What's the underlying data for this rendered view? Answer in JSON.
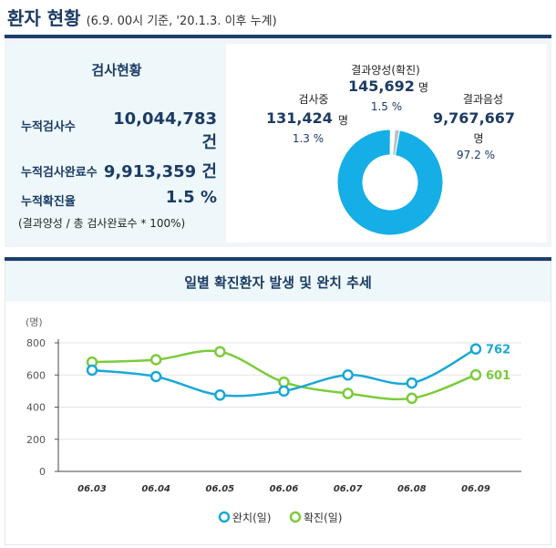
{
  "header": {
    "title": "환자 현황",
    "subtitle": "(6.9. 00시 기준, '20.1.3. 이후 누계)"
  },
  "stats": {
    "title": "검사현황",
    "rows": [
      {
        "label": "누적검사수",
        "value": "10,044,783",
        "unit": "건"
      },
      {
        "label": "누적검사완료수",
        "value": "9,913,359 건"
      },
      {
        "label": "누적확진율",
        "value": "1.5 %"
      }
    ],
    "note": "(결과양성 / 총 검사완료수 * 100%)"
  },
  "pie": {
    "testing": {
      "label": "검사중",
      "value": "131,424",
      "unit": "명",
      "pct": "1.3 %"
    },
    "positive": {
      "label": "결과양성(확진)",
      "value": "145,692",
      "unit": "명",
      "pct": "1.5 %"
    },
    "negative": {
      "label": "결과음성",
      "value": "9,767,667",
      "unit": "명",
      "pct": "97.2 %"
    },
    "colors": {
      "negative": "#15aee6",
      "positive": "#b8c2cc",
      "testing": "#ffffff"
    }
  },
  "chart_data": {
    "type": "line",
    "title": "일별 확진환자 발생 및 완치 추세",
    "ylabel": "(명)",
    "categories": [
      "06.03",
      "06.04",
      "06.05",
      "06.06",
      "06.07",
      "06.08",
      "06.09"
    ],
    "series": [
      {
        "name": "완치(일)",
        "color": "#1aa8d6",
        "values": [
          630,
          590,
          475,
          500,
          600,
          550,
          762
        ]
      },
      {
        "name": "확진(일)",
        "color": "#7ccb3b",
        "values": [
          680,
          695,
          745,
          555,
          485,
          455,
          601
        ]
      }
    ],
    "end_labels": [
      "762",
      "601"
    ],
    "yticks": [
      "800",
      "600",
      "400",
      "200",
      "0"
    ],
    "ylim": [
      0,
      800
    ],
    "grid": true,
    "legend": "bottom"
  }
}
